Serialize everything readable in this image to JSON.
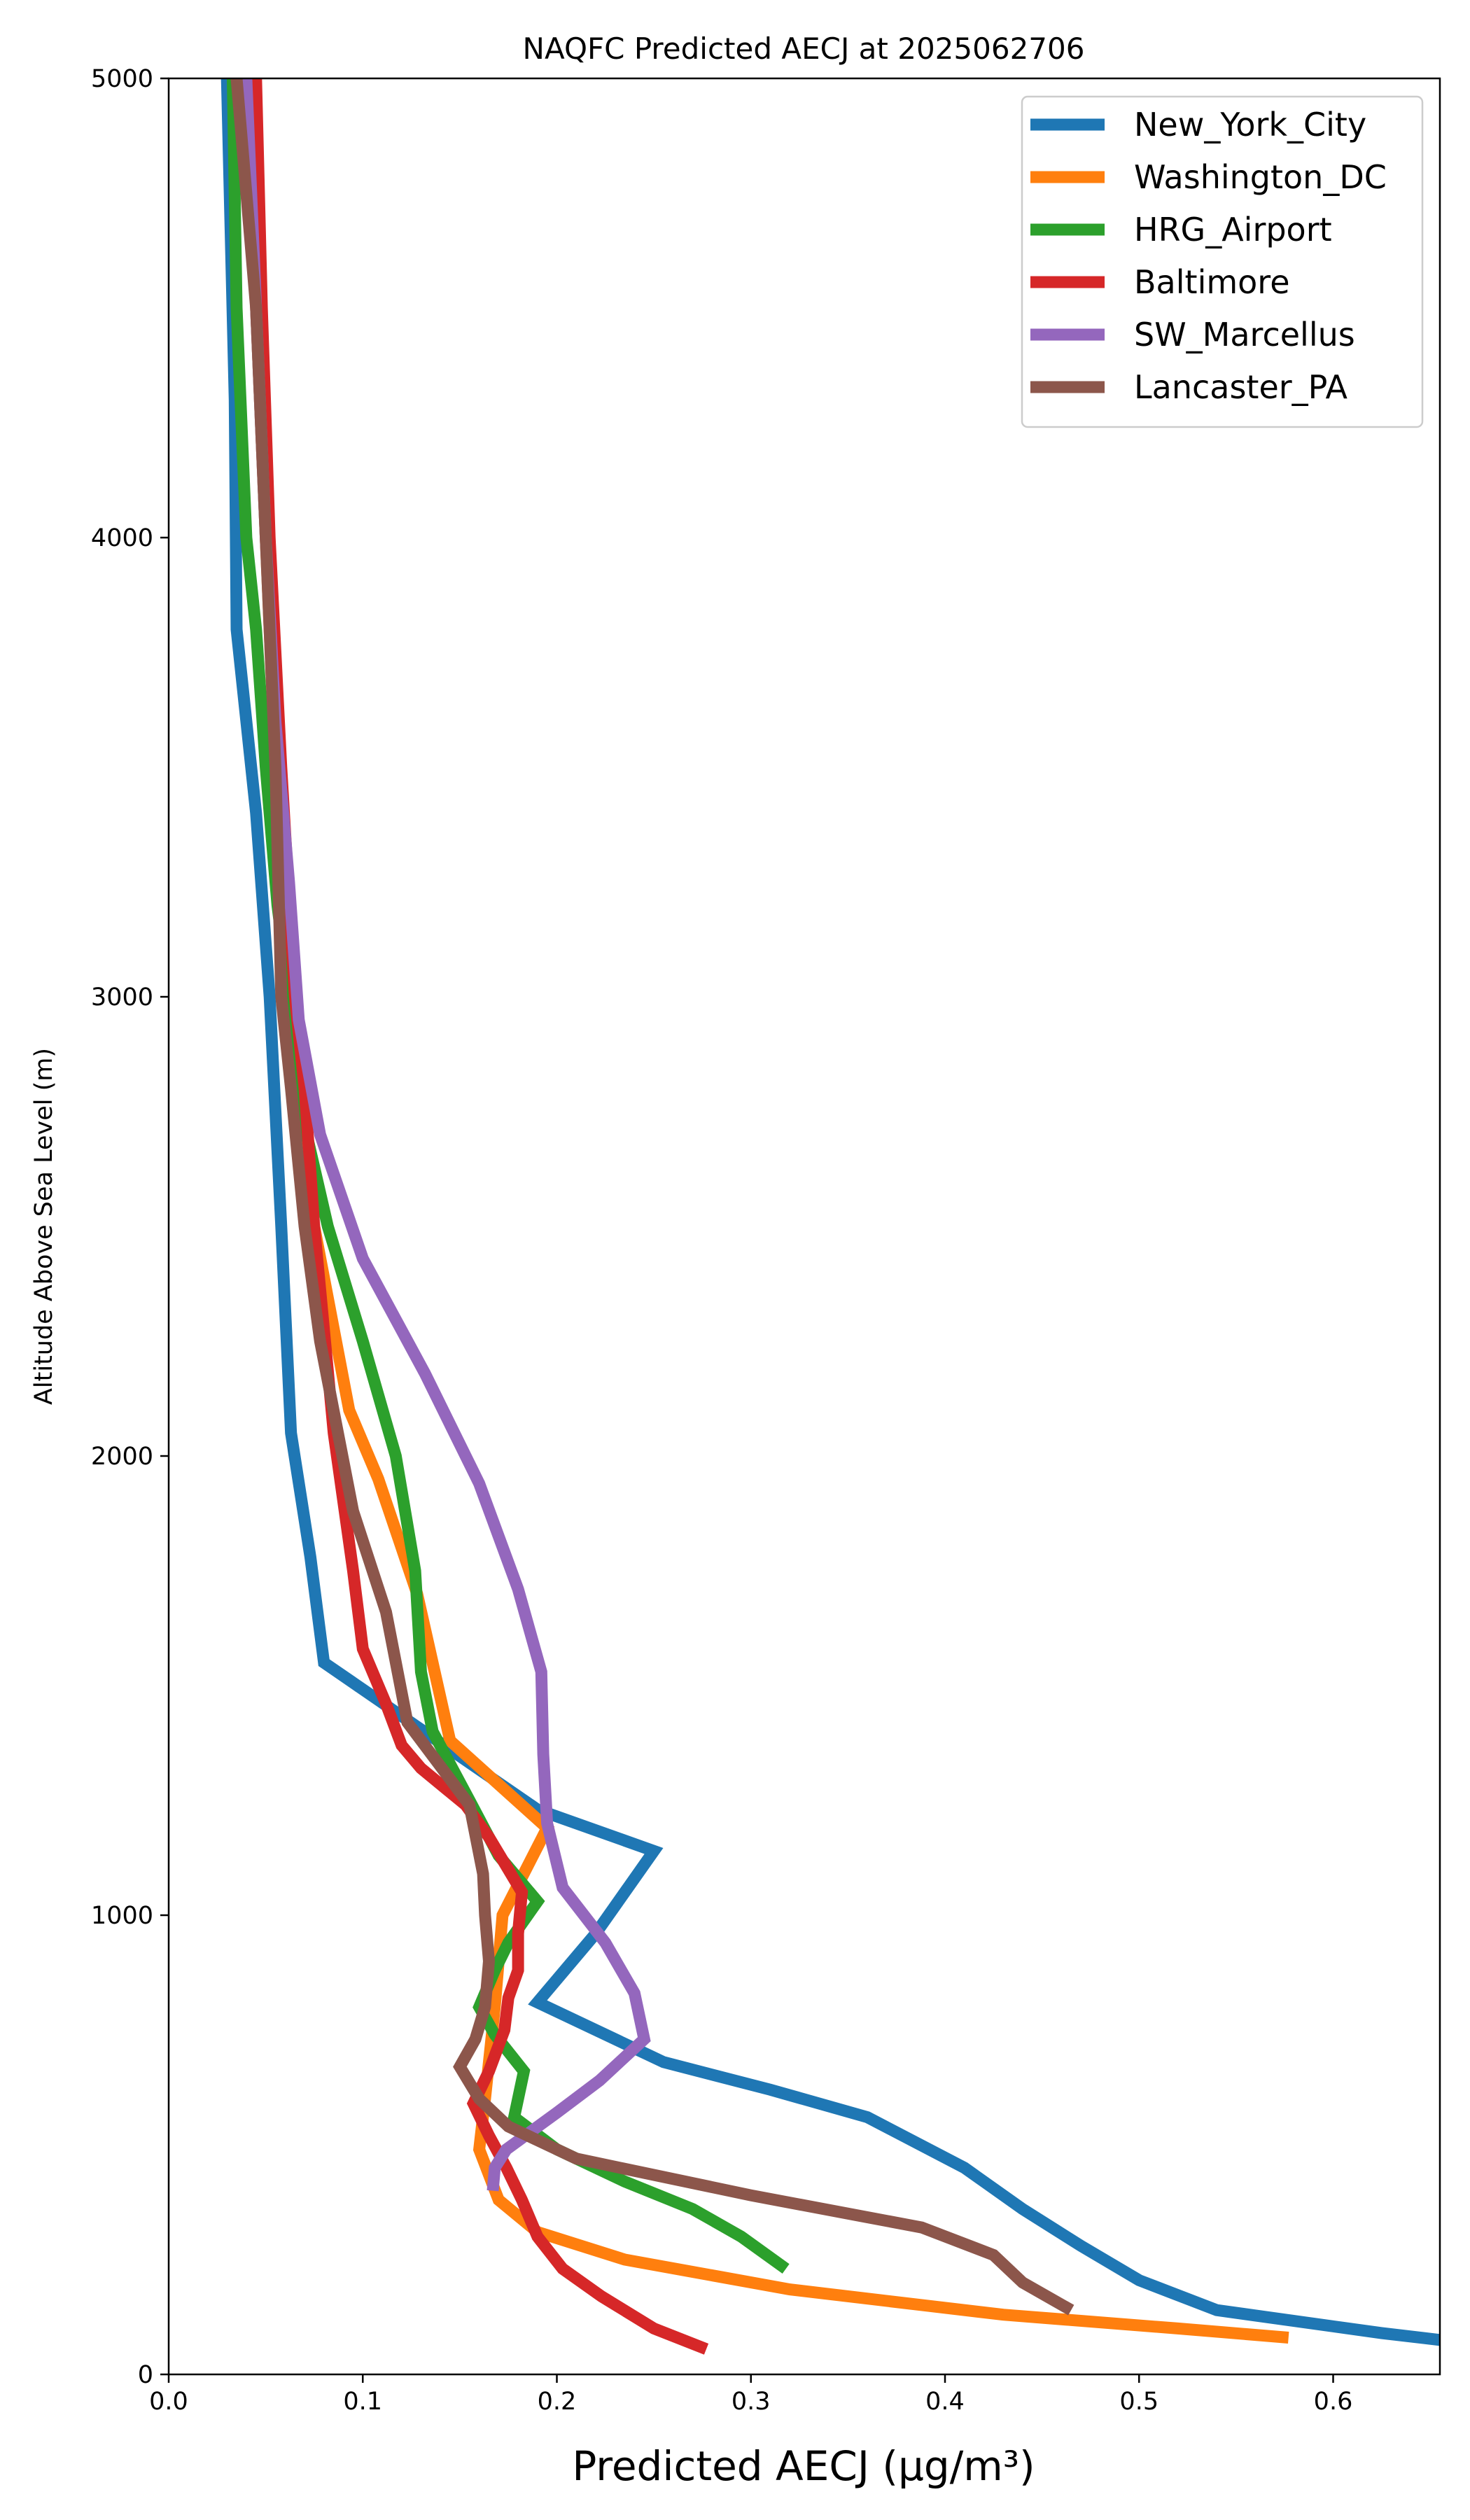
{
  "chart_data": {
    "type": "line",
    "title": "NAQFC Predicted AECJ at 2025062706",
    "xlabel": "Predicted AECJ (μg/m³)",
    "ylabel": "Altitude Above Sea Level (m)",
    "xlim": [
      0.0,
      0.655
    ],
    "ylim": [
      0,
      5000
    ],
    "xticks": [
      0.0,
      0.1,
      0.2,
      0.3,
      0.4,
      0.5,
      0.6
    ],
    "xtick_labels": [
      "0.0",
      "0.1",
      "0.2",
      "0.3",
      "0.4",
      "0.5",
      "0.6"
    ],
    "yticks": [
      0,
      1000,
      2000,
      3000,
      4000,
      5000
    ],
    "ytick_labels": [
      "0",
      "1000",
      "2000",
      "3000",
      "4000",
      "5000"
    ],
    "grid": false,
    "legend_position": "top-right",
    "series": [
      {
        "name": "New_York_City",
        "color": "#1f77b4",
        "points": [
          [
            0.655,
            75
          ],
          [
            0.625,
            90
          ],
          [
            0.54,
            140
          ],
          [
            0.5,
            205
          ],
          [
            0.47,
            280
          ],
          [
            0.44,
            360
          ],
          [
            0.41,
            450
          ],
          [
            0.36,
            560
          ],
          [
            0.31,
            620
          ],
          [
            0.255,
            680
          ],
          [
            0.19,
            810
          ],
          [
            0.22,
            960
          ],
          [
            0.25,
            1140
          ],
          [
            0.19,
            1230
          ],
          [
            0.08,
            1550
          ],
          [
            0.073,
            1780
          ],
          [
            0.063,
            2050
          ],
          [
            0.058,
            2500
          ],
          [
            0.052,
            3000
          ],
          [
            0.045,
            3400
          ],
          [
            0.035,
            3800
          ],
          [
            0.034,
            4300
          ],
          [
            0.03,
            5000
          ]
        ]
      },
      {
        "name": "Washington_DC",
        "color": "#ff7f0e",
        "points": [
          [
            0.577,
            80
          ],
          [
            0.52,
            100
          ],
          [
            0.43,
            130
          ],
          [
            0.32,
            185
          ],
          [
            0.235,
            250
          ],
          [
            0.19,
            310
          ],
          [
            0.17,
            380
          ],
          [
            0.16,
            490
          ],
          [
            0.163,
            600
          ],
          [
            0.168,
            800
          ],
          [
            0.172,
            1000
          ],
          [
            0.195,
            1190
          ],
          [
            0.145,
            1380
          ],
          [
            0.128,
            1700
          ],
          [
            0.108,
            1950
          ],
          [
            0.093,
            2100
          ],
          [
            0.075,
            2500
          ],
          [
            0.067,
            2800
          ],
          [
            0.06,
            3000
          ],
          [
            0.055,
            3500
          ],
          [
            0.05,
            4000
          ],
          [
            0.045,
            4500
          ],
          [
            0.042,
            5000
          ]
        ]
      },
      {
        "name": "HRG_Airport",
        "color": "#2ca02c",
        "points": [
          [
            0.318,
            230
          ],
          [
            0.295,
            300
          ],
          [
            0.27,
            360
          ],
          [
            0.235,
            420
          ],
          [
            0.2,
            490
          ],
          [
            0.178,
            560
          ],
          [
            0.183,
            660
          ],
          [
            0.168,
            740
          ],
          [
            0.16,
            800
          ],
          [
            0.168,
            880
          ],
          [
            0.175,
            940
          ],
          [
            0.19,
            1030
          ],
          [
            0.17,
            1130
          ],
          [
            0.155,
            1250
          ],
          [
            0.136,
            1400
          ],
          [
            0.13,
            1530
          ],
          [
            0.127,
            1750
          ],
          [
            0.117,
            2000
          ],
          [
            0.1,
            2250
          ],
          [
            0.082,
            2500
          ],
          [
            0.07,
            2720
          ],
          [
            0.062,
            3000
          ],
          [
            0.056,
            3200
          ],
          [
            0.05,
            3500
          ],
          [
            0.045,
            3800
          ],
          [
            0.04,
            4000
          ],
          [
            0.035,
            4500
          ],
          [
            0.033,
            5000
          ]
        ]
      },
      {
        "name": "Baltimore",
        "color": "#d62728",
        "points": [
          [
            0.277,
            55
          ],
          [
            0.25,
            100
          ],
          [
            0.223,
            170
          ],
          [
            0.203,
            230
          ],
          [
            0.19,
            300
          ],
          [
            0.182,
            380
          ],
          [
            0.174,
            450
          ],
          [
            0.165,
            520
          ],
          [
            0.157,
            590
          ],
          [
            0.165,
            660
          ],
          [
            0.173,
            750
          ],
          [
            0.175,
            820
          ],
          [
            0.18,
            880
          ],
          [
            0.18,
            960
          ],
          [
            0.182,
            1050
          ],
          [
            0.165,
            1170
          ],
          [
            0.153,
            1240
          ],
          [
            0.13,
            1320
          ],
          [
            0.12,
            1370
          ],
          [
            0.112,
            1460
          ],
          [
            0.1,
            1580
          ],
          [
            0.095,
            1750
          ],
          [
            0.085,
            2050
          ],
          [
            0.075,
            2500
          ],
          [
            0.07,
            2800
          ],
          [
            0.065,
            3000
          ],
          [
            0.058,
            3500
          ],
          [
            0.052,
            4000
          ],
          [
            0.048,
            4500
          ],
          [
            0.045,
            5000
          ]
        ]
      },
      {
        "name": "SW_Marcellus",
        "color": "#9467bd",
        "points": [
          [
            0.167,
            400
          ],
          [
            0.168,
            450
          ],
          [
            0.174,
            490
          ],
          [
            0.2,
            570
          ],
          [
            0.222,
            640
          ],
          [
            0.245,
            730
          ],
          [
            0.24,
            830
          ],
          [
            0.225,
            940
          ],
          [
            0.203,
            1060
          ],
          [
            0.195,
            1200
          ],
          [
            0.193,
            1350
          ],
          [
            0.192,
            1530
          ],
          [
            0.18,
            1710
          ],
          [
            0.16,
            1940
          ],
          [
            0.132,
            2180
          ],
          [
            0.1,
            2430
          ],
          [
            0.078,
            2700
          ],
          [
            0.067,
            2950
          ],
          [
            0.062,
            3250
          ],
          [
            0.055,
            3600
          ],
          [
            0.05,
            4000
          ],
          [
            0.045,
            4500
          ],
          [
            0.04,
            5000
          ]
        ]
      },
      {
        "name": "Lancaster_PA",
        "color": "#8c564b",
        "points": [
          [
            0.465,
            140
          ],
          [
            0.44,
            200
          ],
          [
            0.425,
            260
          ],
          [
            0.388,
            320
          ],
          [
            0.3,
            390
          ],
          [
            0.21,
            470
          ],
          [
            0.175,
            540
          ],
          [
            0.16,
            600
          ],
          [
            0.15,
            670
          ],
          [
            0.158,
            730
          ],
          [
            0.163,
            800
          ],
          [
            0.165,
            900
          ],
          [
            0.163,
            1000
          ],
          [
            0.162,
            1090
          ],
          [
            0.155,
            1240
          ],
          [
            0.123,
            1420
          ],
          [
            0.112,
            1660
          ],
          [
            0.095,
            1880
          ],
          [
            0.078,
            2250
          ],
          [
            0.07,
            2500
          ],
          [
            0.063,
            2800
          ],
          [
            0.058,
            3000
          ],
          [
            0.055,
            3500
          ],
          [
            0.05,
            4000
          ],
          [
            0.045,
            4500
          ],
          [
            0.035,
            5000
          ]
        ]
      }
    ]
  }
}
